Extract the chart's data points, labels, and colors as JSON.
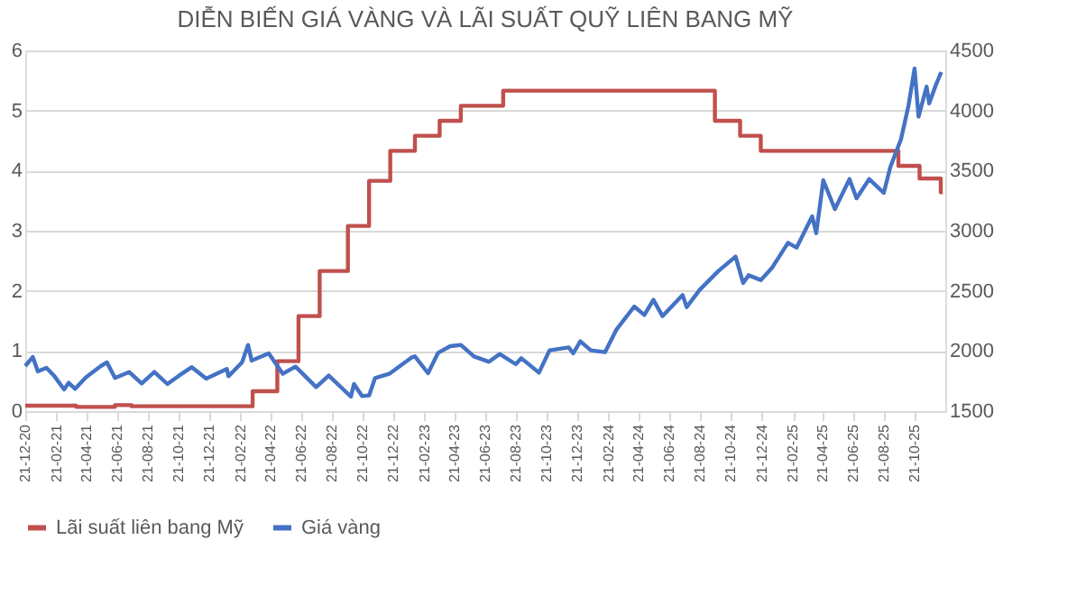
{
  "chart_data": {
    "type": "line",
    "title": "DIỄN BIẾN GIÁ VÀNG VÀ LÃI SUẤT QUỸ LIÊN BANG MỸ",
    "xlim": [
      "2020-12-21",
      "2025-12-20"
    ],
    "xticks": [
      {
        "value": "2020-12-21",
        "label": "21-12-20"
      },
      {
        "value": "2021-02-21",
        "label": "21-02-21"
      },
      {
        "value": "2021-04-21",
        "label": "21-04-21"
      },
      {
        "value": "2021-06-21",
        "label": "21-06-21"
      },
      {
        "value": "2021-08-21",
        "label": "21-08-21"
      },
      {
        "value": "2021-10-21",
        "label": "21-10-21"
      },
      {
        "value": "2021-12-21",
        "label": "21-12-21"
      },
      {
        "value": "2022-02-21",
        "label": "21-02-22"
      },
      {
        "value": "2022-04-21",
        "label": "21-04-22"
      },
      {
        "value": "2022-06-21",
        "label": "21-06-22"
      },
      {
        "value": "2022-08-21",
        "label": "21-08-22"
      },
      {
        "value": "2022-10-21",
        "label": "21-10-22"
      },
      {
        "value": "2022-12-21",
        "label": "21-12-22"
      },
      {
        "value": "2023-02-21",
        "label": "21-02-23"
      },
      {
        "value": "2023-04-21",
        "label": "21-04-23"
      },
      {
        "value": "2023-06-21",
        "label": "21-06-23"
      },
      {
        "value": "2023-08-21",
        "label": "21-08-23"
      },
      {
        "value": "2023-10-21",
        "label": "21-10-23"
      },
      {
        "value": "2023-12-21",
        "label": "21-12-23"
      },
      {
        "value": "2024-02-21",
        "label": "21-02-24"
      },
      {
        "value": "2024-04-21",
        "label": "21-04-24"
      },
      {
        "value": "2024-06-21",
        "label": "21-06-24"
      },
      {
        "value": "2024-08-21",
        "label": "21-08-24"
      },
      {
        "value": "2024-10-21",
        "label": "21-10-24"
      },
      {
        "value": "2024-12-21",
        "label": "21-12-24"
      },
      {
        "value": "2025-02-21",
        "label": "21-02-25"
      },
      {
        "value": "2025-04-21",
        "label": "21-04-25"
      },
      {
        "value": "2025-06-21",
        "label": "21-06-25"
      },
      {
        "value": "2025-08-21",
        "label": "21-08-25"
      },
      {
        "value": "2025-10-21",
        "label": "21-10-25"
      }
    ],
    "ylim": [
      0,
      6
    ],
    "yticks": [
      0,
      1,
      2,
      3,
      4,
      5,
      6
    ],
    "y2lim": [
      1500,
      4500
    ],
    "y2ticks": [
      1500,
      2000,
      2500,
      3000,
      3500,
      4000,
      4500
    ],
    "grid": "y",
    "legend": "bottom",
    "series": [
      {
        "name": "Lãi suất liên bang Mỹ",
        "type": "step",
        "color": "#c0504d",
        "x": [
          "2020-12-21",
          "2021-04-01",
          "2021-06-17",
          "2021-07-20",
          "2022-03-17",
          "2022-05-05",
          "2022-06-16",
          "2022-07-28",
          "2022-09-22",
          "2022-11-03",
          "2022-12-15",
          "2023-02-02",
          "2023-03-23",
          "2023-05-04",
          "2023-07-27",
          "2024-09-19",
          "2024-11-08",
          "2024-12-19",
          "2025-09-18",
          "2025-10-30",
          "2025-12-11",
          "2025-12-15"
        ],
        "values": [
          0.09,
          0.07,
          0.1,
          0.08,
          0.33,
          0.83,
          1.58,
          2.33,
          3.08,
          3.83,
          4.33,
          4.58,
          4.83,
          5.08,
          5.33,
          4.83,
          4.58,
          4.33,
          4.08,
          3.87,
          3.64,
          3.64
        ]
      },
      {
        "name": "Giá vàng",
        "type": "line",
        "axis": "y2",
        "color": "#4472c4",
        "x": [
          "2020-12-21",
          "2021-01-05",
          "2021-01-15",
          "2021-02-01",
          "2021-02-16",
          "2021-03-08",
          "2021-03-17",
          "2021-03-30",
          "2021-04-20",
          "2021-05-20",
          "2021-06-01",
          "2021-06-17",
          "2021-07-15",
          "2021-08-09",
          "2021-09-03",
          "2021-09-29",
          "2021-10-22",
          "2021-11-16",
          "2021-12-15",
          "2022-01-25",
          "2022-01-28",
          "2022-02-24",
          "2022-03-08",
          "2022-03-15",
          "2022-04-18",
          "2022-05-16",
          "2022-06-10",
          "2022-07-21",
          "2022-08-15",
          "2022-09-28",
          "2022-10-04",
          "2022-10-20",
          "2022-11-03",
          "2022-11-15",
          "2022-12-13",
          "2023-01-26",
          "2023-02-02",
          "2023-02-28",
          "2023-03-20",
          "2023-04-13",
          "2023-05-04",
          "2023-05-30",
          "2023-06-29",
          "2023-07-20",
          "2023-08-21",
          "2023-09-01",
          "2023-10-06",
          "2023-10-27",
          "2023-12-04",
          "2023-12-13",
          "2023-12-27",
          "2024-01-17",
          "2024-02-14",
          "2024-03-08",
          "2024-04-12",
          "2024-05-02",
          "2024-05-20",
          "2024-06-07",
          "2024-07-17",
          "2024-07-25",
          "2024-08-20",
          "2024-09-26",
          "2024-10-30",
          "2024-11-14",
          "2024-11-25",
          "2024-12-19",
          "2025-01-10",
          "2025-02-11",
          "2025-02-28",
          "2025-03-31",
          "2025-04-08",
          "2025-04-22",
          "2025-05-15",
          "2025-06-13",
          "2025-06-27",
          "2025-07-22",
          "2025-08-20",
          "2025-09-02",
          "2025-09-23",
          "2025-10-08",
          "2025-10-20",
          "2025-10-28",
          "2025-11-13",
          "2025-11-18",
          "2025-12-02",
          "2025-12-12"
        ],
        "values": [
          1875,
          1950,
          1830,
          1860,
          1795,
          1680,
          1735,
          1685,
          1780,
          1875,
          1905,
          1775,
          1825,
          1730,
          1825,
          1725,
          1795,
          1865,
          1770,
          1850,
          1790,
          1905,
          2050,
          1920,
          1980,
          1810,
          1870,
          1700,
          1795,
          1620,
          1725,
          1625,
          1630,
          1775,
          1810,
          1945,
          1955,
          1815,
          1985,
          2040,
          2050,
          1955,
          1910,
          1975,
          1890,
          1940,
          1820,
          2005,
          2030,
          1980,
          2080,
          2005,
          1990,
          2180,
          2370,
          2300,
          2425,
          2290,
          2465,
          2365,
          2510,
          2665,
          2785,
          2565,
          2630,
          2590,
          2690,
          2900,
          2860,
          3120,
          2980,
          3420,
          3180,
          3430,
          3270,
          3430,
          3315,
          3530,
          3760,
          4040,
          4350,
          3950,
          4200,
          4060,
          4220,
          4320
        ]
      }
    ]
  }
}
